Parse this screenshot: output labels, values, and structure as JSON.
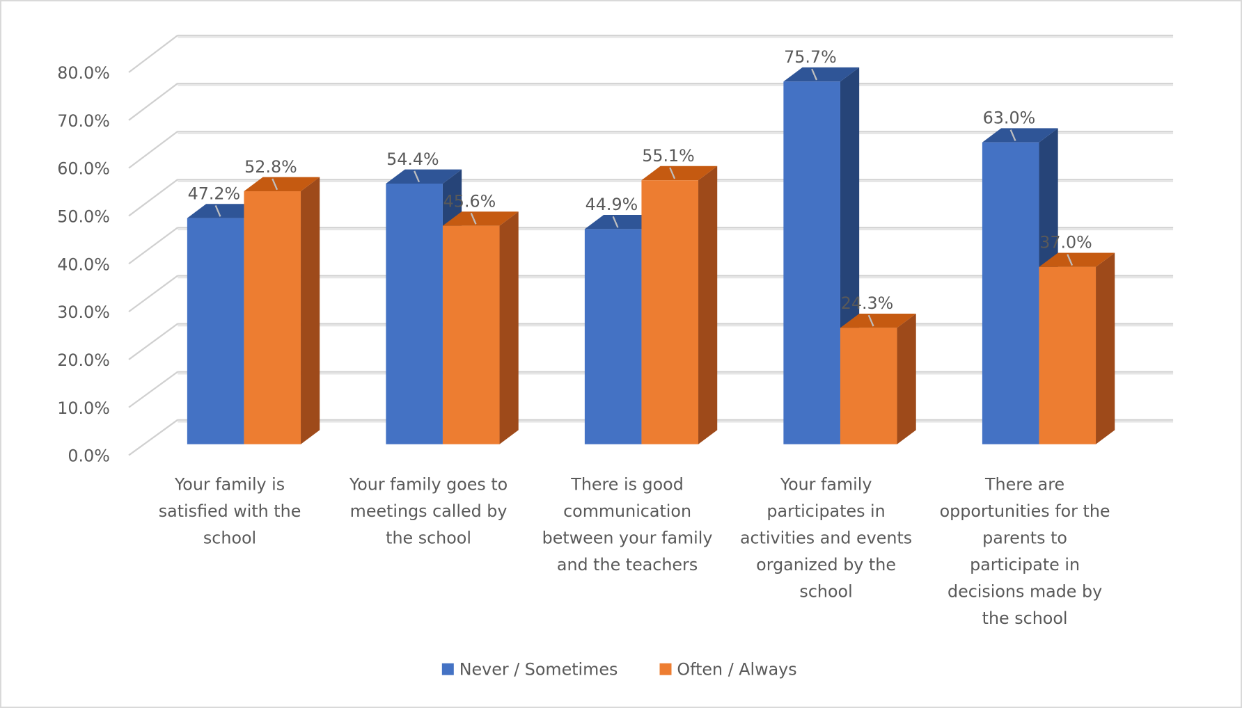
{
  "chart_data": {
    "type": "bar",
    "style": "3d-clustered-column",
    "title": "",
    "xlabel": "",
    "ylabel": "",
    "ylim": [
      0,
      80
    ],
    "yticks": [
      "0.0%",
      "10.0%",
      "20.0%",
      "30.0%",
      "40.0%",
      "50.0%",
      "60.0%",
      "70.0%",
      "80.0%"
    ],
    "grid": true,
    "legend_position": "bottom",
    "categories": [
      [
        "Your family is",
        "satisfied with the",
        "school"
      ],
      [
        "Your family goes to",
        "meetings called by",
        "the school"
      ],
      [
        "There is good",
        "communication",
        "between your family",
        "and the teachers"
      ],
      [
        "Your family",
        "participates in",
        "activities and events",
        "organized by the",
        "school"
      ],
      [
        "There are",
        "opportunities for the",
        "parents to",
        "participate in",
        "decisions made by",
        "the school"
      ]
    ],
    "series": [
      {
        "name": "Never / Sometimes",
        "color": "#4472C4",
        "values": [
          47.2,
          54.4,
          44.9,
          75.7,
          63.0
        ],
        "labels": [
          "47.2%",
          "54.4%",
          "44.9%",
          "75.7%",
          "63.0%"
        ]
      },
      {
        "name": "Often / Always",
        "color": "#ED7D31",
        "values": [
          52.8,
          45.6,
          55.1,
          24.3,
          37.0
        ],
        "labels": [
          "52.8%",
          "45.6%",
          "55.1%",
          "24.3%",
          "37.0%"
        ]
      }
    ]
  }
}
